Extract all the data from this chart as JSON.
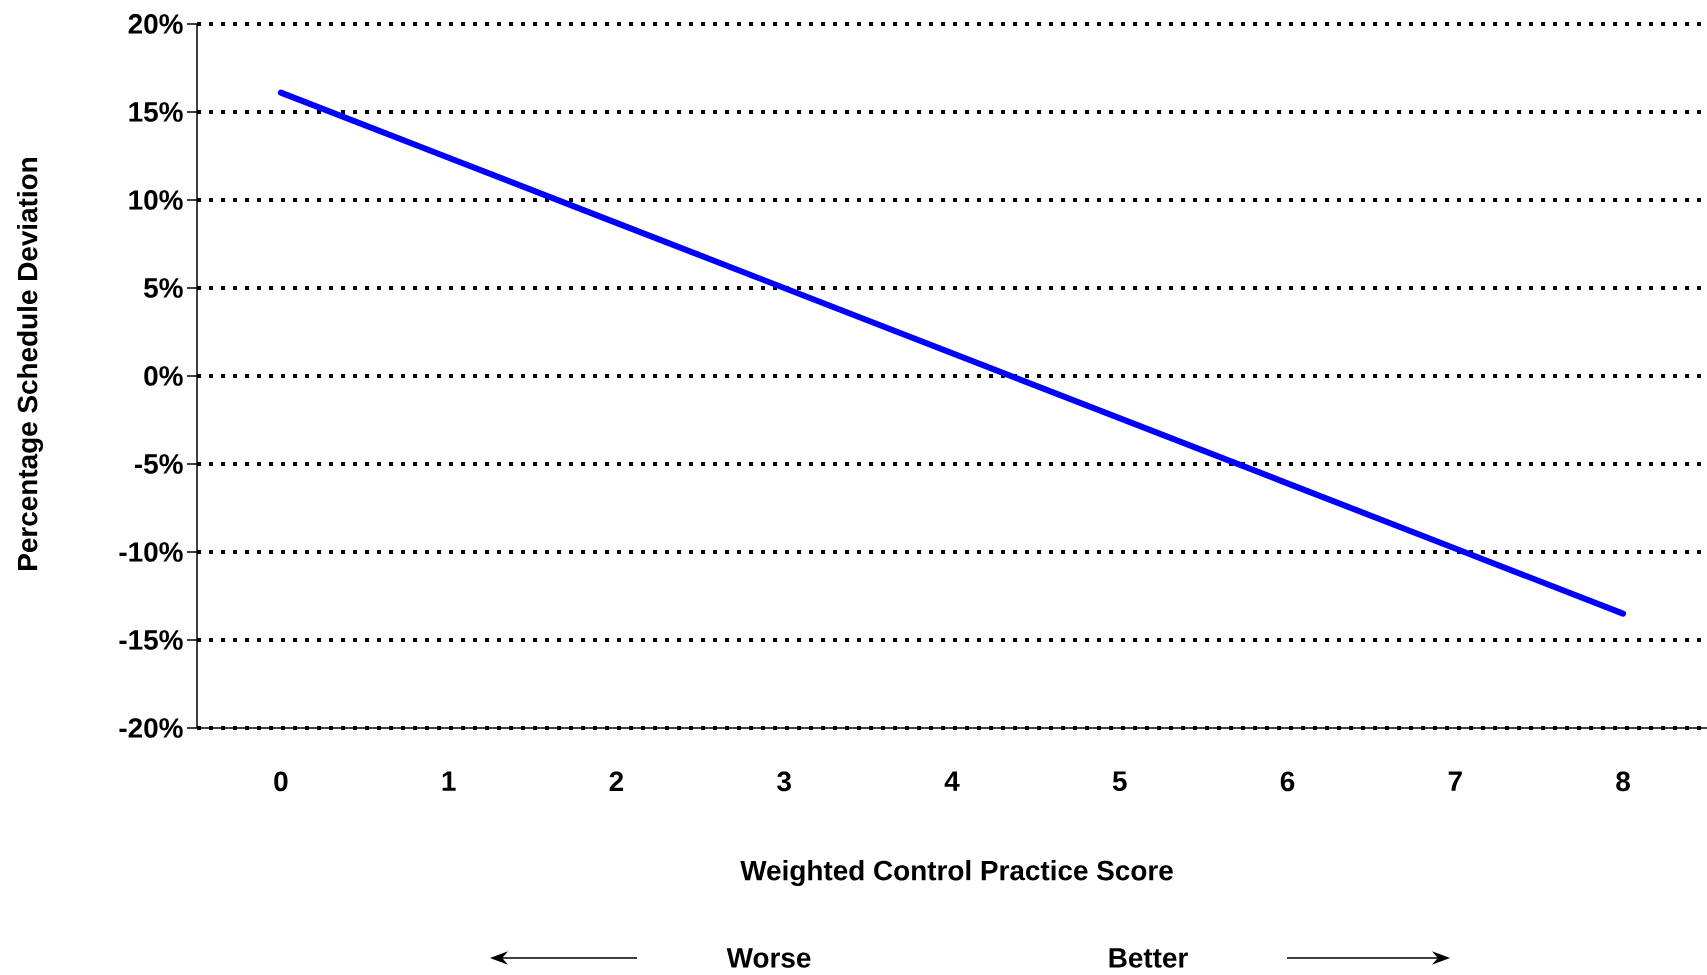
{
  "chart_data": {
    "type": "line",
    "xlabel": "Weighted Control Practice Score",
    "ylabel": "Percentage Schedule Deviation",
    "categories": [
      "0",
      "1",
      "2",
      "3",
      "4",
      "5",
      "6",
      "7",
      "8"
    ],
    "values": [
      16.1,
      12.4,
      8.7,
      5.0,
      1.3,
      -2.4,
      -6.1,
      -9.8,
      -13.5
    ],
    "color": "#0000ff",
    "ylim": [
      -20,
      20
    ],
    "yticks": [
      {
        "value": -20,
        "label": "-20%"
      },
      {
        "value": -15,
        "label": "-15%"
      },
      {
        "value": -10,
        "label": "-10%"
      },
      {
        "value": -5,
        "label": "-5%"
      },
      {
        "value": 0,
        "label": "0%"
      },
      {
        "value": 5,
        "label": "5%"
      },
      {
        "value": 10,
        "label": "10%"
      },
      {
        "value": 15,
        "label": "15%"
      },
      {
        "value": 20,
        "label": "20%"
      }
    ],
    "grid": "y",
    "annotations": [
      "Worse",
      "Better"
    ]
  }
}
